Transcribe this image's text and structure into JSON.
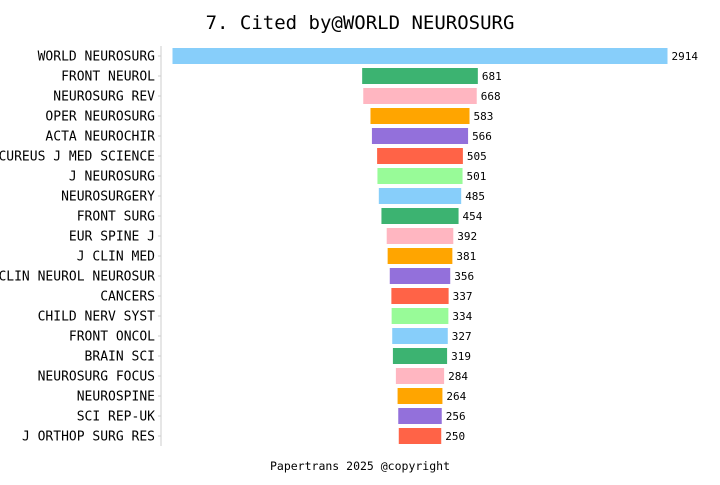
{
  "chart_data": {
    "type": "bar",
    "orientation": "horizontal",
    "layout": "centered",
    "title": "7. Cited by@WORLD NEUROSURG",
    "footer": "Papertrans 2025 @copyright",
    "categories": [
      "WORLD NEUROSURG",
      "FRONT NEUROL",
      "NEUROSURG REV",
      "OPER NEUROSURG",
      "ACTA NEUROCHIR",
      "CUREUS J MED SCIENCE",
      "J NEUROSURG",
      "NEUROSURGERY",
      "FRONT SURG",
      "EUR SPINE J",
      "J CLIN MED",
      "CLIN NEUROL NEUROSUR",
      "CANCERS",
      "CHILD NERV SYST",
      "FRONT ONCOL",
      "BRAIN SCI",
      "NEUROSURG FOCUS",
      "NEUROSPINE",
      "SCI REP-UK",
      "J ORTHOP SURG RES"
    ],
    "values": [
      2914,
      681,
      668,
      583,
      566,
      505,
      501,
      485,
      454,
      392,
      381,
      356,
      337,
      334,
      327,
      319,
      284,
      264,
      256,
      250
    ],
    "colors": [
      "#87CEFA",
      "#3CB371",
      "#FFB6C1",
      "#FFA500",
      "#9370DB",
      "#FF6347",
      "#98FB98"
    ],
    "xlim": [
      0,
      2914
    ],
    "grid": false,
    "legend": "none"
  }
}
